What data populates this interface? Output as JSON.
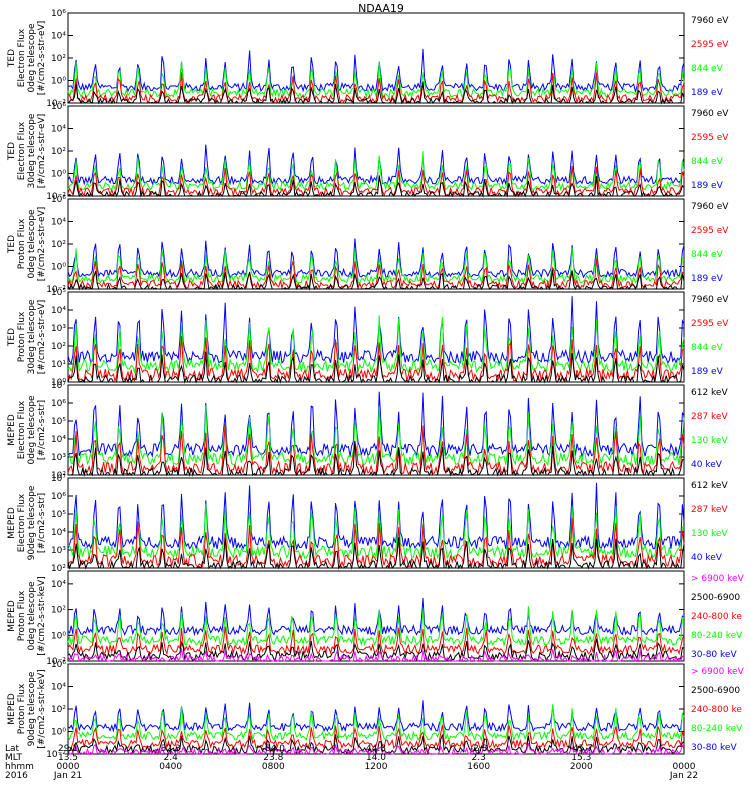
{
  "title": "NDAA19",
  "chart_data": [
    {
      "type": "line",
      "ylabel": [
        "TED",
        "Electron Flux",
        "0deg telescope",
        "[#/cm2-s-str-eV]"
      ],
      "ylim": [
        0.01,
        1000000
      ],
      "ytick_exponents": [
        -2,
        0,
        2,
        4,
        6
      ],
      "log_scale": true,
      "series": [
        {
          "name": "7960 eV",
          "color": "#000000"
        },
        {
          "name": "2595 eV",
          "color": "#ff0000"
        },
        {
          "name": "844 eV",
          "color": "#00ff00"
        },
        {
          "name": "189 eV",
          "color": "#0000ff"
        }
      ]
    },
    {
      "type": "line",
      "ylabel": [
        "TED",
        "Electron Flux",
        "30deg telescope",
        "[#/cm2-s-str-eV]"
      ],
      "ylim": [
        0.01,
        1000000
      ],
      "ytick_exponents": [
        -2,
        0,
        2,
        4,
        6
      ],
      "log_scale": true,
      "series": [
        {
          "name": "7960 eV",
          "color": "#000000"
        },
        {
          "name": "2595 eV",
          "color": "#ff0000"
        },
        {
          "name": "844 eV",
          "color": "#00ff00"
        },
        {
          "name": "189 eV",
          "color": "#0000ff"
        }
      ]
    },
    {
      "type": "line",
      "ylabel": [
        "TED",
        "Proton Flux",
        "0deg telescope",
        "[#/cm2-s-str-eV]"
      ],
      "ylim": [
        0.01,
        1000000
      ],
      "ytick_exponents": [
        -2,
        0,
        2,
        4,
        6
      ],
      "log_scale": true,
      "series": [
        {
          "name": "7960 eV",
          "color": "#000000"
        },
        {
          "name": "2595 eV",
          "color": "#ff0000"
        },
        {
          "name": "844 eV",
          "color": "#00ff00"
        },
        {
          "name": "189 eV",
          "color": "#0000ff"
        }
      ]
    },
    {
      "type": "line",
      "ylabel": [
        "TED",
        "Proton Flux",
        "30deg telescope",
        "[#/cm2-s-str-eV]"
      ],
      "ylim": [
        1,
        100000
      ],
      "ytick_exponents": [
        0,
        1,
        2,
        3,
        4,
        5
      ],
      "log_scale": true,
      "series": [
        {
          "name": "7960 eV",
          "color": "#000000"
        },
        {
          "name": "2595 eV",
          "color": "#ff0000"
        },
        {
          "name": "844 eV",
          "color": "#00ff00"
        },
        {
          "name": "189 eV",
          "color": "#0000ff"
        }
      ]
    },
    {
      "type": "line",
      "ylabel": [
        "MEPED",
        "Electron Flux",
        "0deg telescope",
        "[#/cm2-s-str]"
      ],
      "ylim": [
        100,
        10000000
      ],
      "ytick_exponents": [
        2,
        3,
        4,
        5,
        6,
        7
      ],
      "log_scale": true,
      "series": [
        {
          "name": "612 keV",
          "color": "#000000"
        },
        {
          "name": "287 keV",
          "color": "#ff0000"
        },
        {
          "name": "130 keV",
          "color": "#00ff00"
        },
        {
          "name": "40 keV",
          "color": "#0000ff"
        }
      ]
    },
    {
      "type": "line",
      "ylabel": [
        "MEPED",
        "Electron Flux",
        "90deg telescope",
        "[#/cm2-s-str]"
      ],
      "ylim": [
        100,
        10000000
      ],
      "ytick_exponents": [
        2,
        3,
        4,
        5,
        6,
        7
      ],
      "log_scale": true,
      "series": [
        {
          "name": "612 keV",
          "color": "#000000"
        },
        {
          "name": "287 keV",
          "color": "#ff0000"
        },
        {
          "name": "130 keV",
          "color": "#00ff00"
        },
        {
          "name": "40 keV",
          "color": "#0000ff"
        }
      ]
    },
    {
      "type": "line",
      "ylabel": [
        "MEPED",
        "Proton Flux",
        "0deg telescope",
        "[#/cm2-s-str-keV]"
      ],
      "ylim": [
        0.01,
        100000
      ],
      "ytick_exponents": [
        -2,
        0,
        2,
        4
      ],
      "log_scale": true,
      "series": [
        {
          "name": "> 6900 keV",
          "color": "#ff00ff"
        },
        {
          "name": "2500-6900",
          "color": "#000000"
        },
        {
          "name": "240-800 ke",
          "color": "#ff0000"
        },
        {
          "name": "80-240 keV",
          "color": "#00ff00"
        },
        {
          "name": "30-80 keV",
          "color": "#0000ff"
        }
      ]
    },
    {
      "type": "line",
      "ylabel": [
        "MEPED",
        "Proton Flux",
        "90deg telescope",
        "[#/cm2-s-str-keV]"
      ],
      "ylim": [
        0.01,
        1000000
      ],
      "ytick_exponents": [
        -2,
        0,
        2,
        4,
        6
      ],
      "log_scale": true,
      "series": [
        {
          "name": "> 6900 keV",
          "color": "#ff00ff"
        },
        {
          "name": "2500-6900",
          "color": "#000000"
        },
        {
          "name": "240-800 ke",
          "color": "#ff0000"
        },
        {
          "name": "80-240 keV",
          "color": "#00ff00"
        },
        {
          "name": "30-80 keV",
          "color": "#0000ff"
        }
      ]
    }
  ],
  "xaxis": {
    "row_labels": [
      "Lat",
      "MLT",
      "hhmm",
      "2016"
    ],
    "ticks": [
      {
        "t": 0.0,
        "lat": "29.1",
        "mlt": "13.5",
        "hhmm": "0000",
        "date": "Jan 21"
      },
      {
        "t": 0.1667,
        "lat": "32.3",
        "mlt": "2.4",
        "hhmm": "0400",
        "date": ""
      },
      {
        "t": 0.3333,
        "lat": "-84.0",
        "mlt": "23.8",
        "hhmm": "0800",
        "date": ""
      },
      {
        "t": 0.5,
        "lat": "44.8",
        "mlt": "14.0",
        "hhmm": "1200",
        "date": ""
      },
      {
        "t": 0.6667,
        "lat": "-2.8",
        "mlt": "2.3",
        "hhmm": "1600",
        "date": ""
      },
      {
        "t": 0.8333,
        "lat": "-45.7",
        "mlt": "15.3",
        "hhmm": "2000",
        "date": ""
      },
      {
        "t": 1.0,
        "lat": "",
        "mlt": "",
        "hhmm": "0000",
        "date": "Jan 22"
      }
    ]
  }
}
